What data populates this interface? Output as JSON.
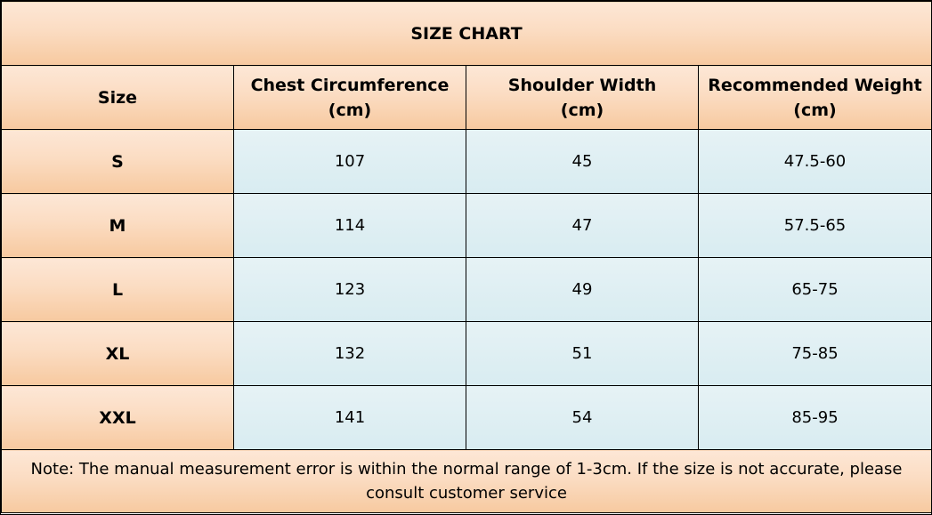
{
  "title": "SIZE CHART",
  "columns": [
    {
      "line1": "Size",
      "line2": ""
    },
    {
      "line1": "Chest Circumference",
      "line2": "(cm)"
    },
    {
      "line1": "Shoulder Width",
      "line2": "(cm)"
    },
    {
      "line1": "Recommended Weight",
      "line2": "(cm)"
    }
  ],
  "rows": [
    {
      "size": "S",
      "chest": "107",
      "shoulder": "45",
      "weight": "47.5-60"
    },
    {
      "size": "M",
      "chest": "114",
      "shoulder": "47",
      "weight": "57.5-65"
    },
    {
      "size": "L",
      "chest": "123",
      "shoulder": "49",
      "weight": "65-75"
    },
    {
      "size": "XL",
      "chest": "132",
      "shoulder": "51",
      "weight": "75-85"
    },
    {
      "size": "XXL",
      "chest": "141",
      "shoulder": "54",
      "weight": "85-95"
    }
  ],
  "note": {
    "line1": "Note: The manual measurement error is within the normal range of 1-3cm. If the size is not accurate, please",
    "line2": "consult customer service"
  },
  "colors": {
    "header_bg": "#fbdcc2",
    "cell_bg": "#ddeef3",
    "border": "#000000"
  }
}
